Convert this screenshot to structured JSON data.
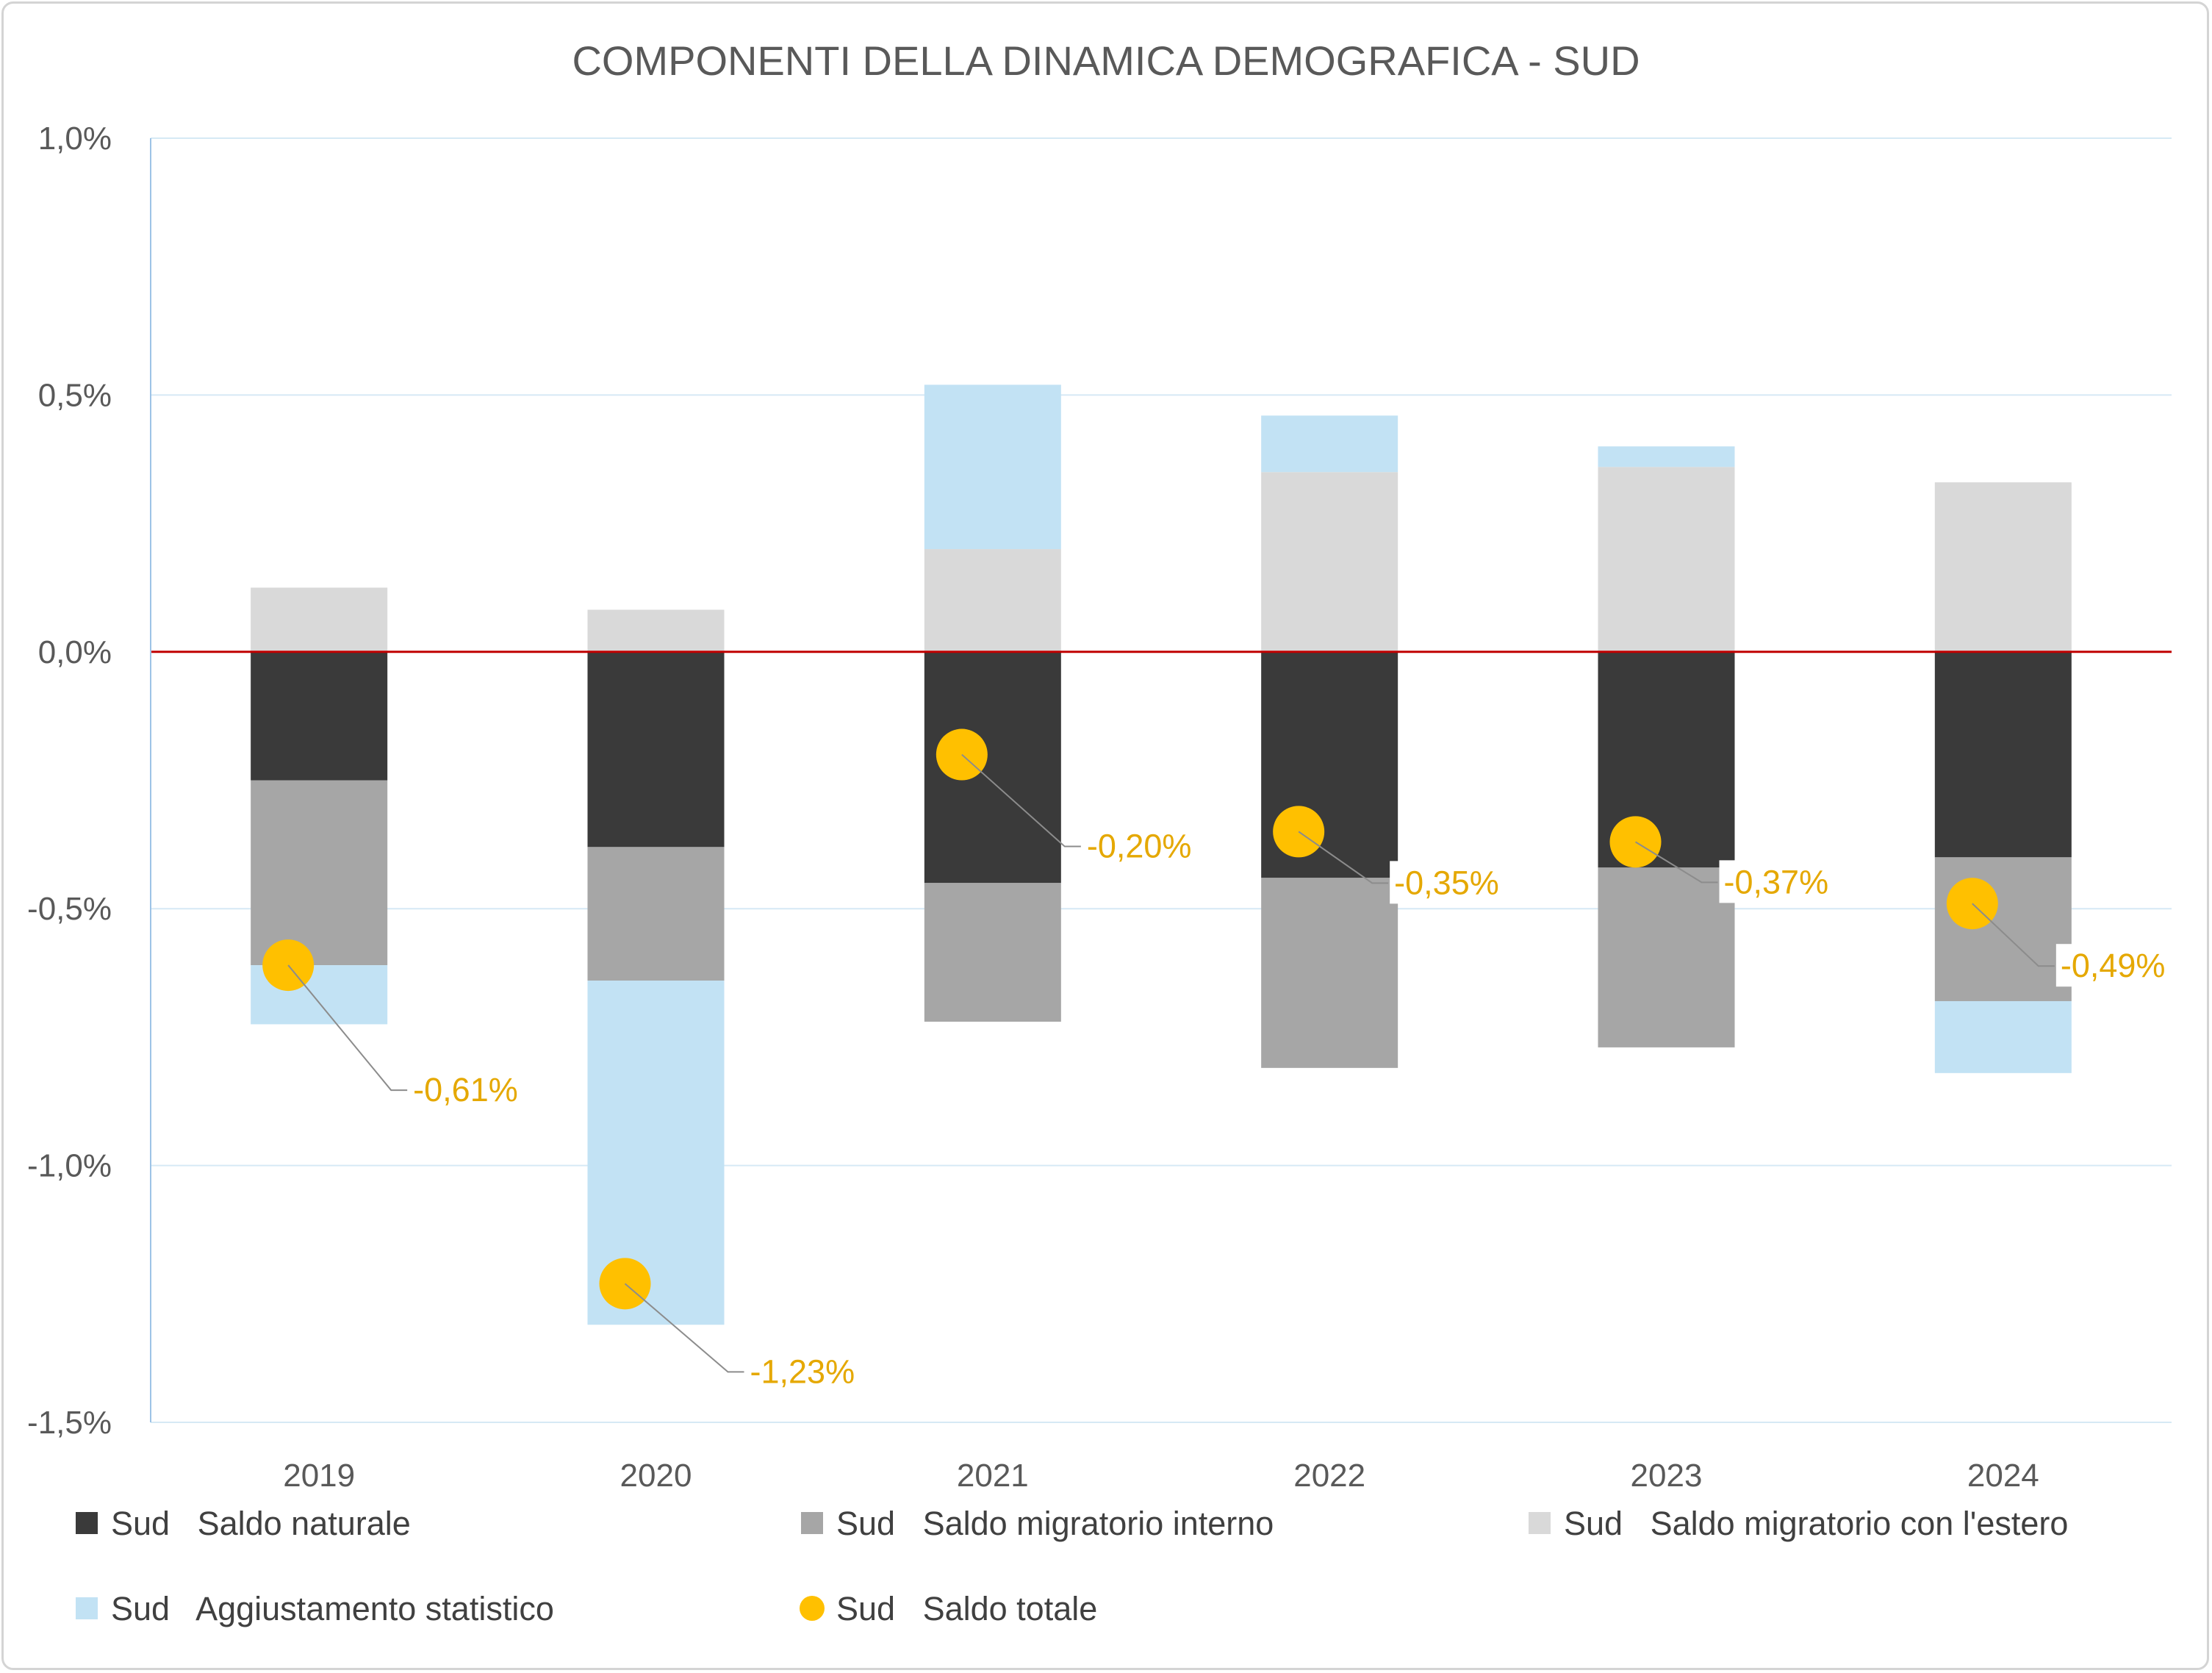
{
  "colors": {
    "saldo_naturale": "#3a3a3a",
    "saldo_migratorio_interno": "#a6a6a6",
    "saldo_migratorio_estero": "#d9d9d9",
    "aggiustamento_statistico": "#c2e2f4",
    "saldo_totale": "#ffc000",
    "label_text": "#e5a800",
    "zero_line": "#c00000",
    "grid": "#d6e9f5",
    "axis": "#9dc3e6"
  },
  "chart_data": {
    "type": "bar",
    "stacked": true,
    "title": "COMPONENTI DELLA DINAMICA DEMOGRAFICA - SUD",
    "xlabel": "",
    "ylabel": "",
    "ylim": [
      -1.5,
      1.0
    ],
    "y_ticks": [
      1.0,
      0.5,
      0.0,
      -0.5,
      -1.0,
      -1.5
    ],
    "y_tick_labels": [
      "1,0%",
      "0,5%",
      "0,0%",
      "-0,5%",
      "-1,0%",
      "-1,5%"
    ],
    "categories": [
      "2019",
      "2020",
      "2021",
      "2022",
      "2023",
      "2024"
    ],
    "series": [
      {
        "name": "Sud   Saldo naturale",
        "type": "bar",
        "color_key": "saldo_naturale",
        "values": [
          -0.25,
          -0.38,
          -0.45,
          -0.44,
          -0.42,
          -0.4
        ]
      },
      {
        "name": "Sud   Saldo migratorio interno",
        "type": "bar",
        "color_key": "saldo_migratorio_interno",
        "values": [
          -0.36,
          -0.26,
          -0.27,
          -0.37,
          -0.35,
          -0.28
        ]
      },
      {
        "name": "Sud   Saldo migratorio con l'estero",
        "type": "bar",
        "color_key": "saldo_migratorio_estero",
        "values": [
          0.125,
          0.082,
          0.2,
          0.35,
          0.36,
          0.33
        ]
      },
      {
        "name": "Sud   Aggiustamento statistico",
        "type": "bar",
        "color_key": "aggiustamento_statistico",
        "values": [
          -0.115,
          -0.67,
          0.32,
          0.11,
          0.04,
          -0.14
        ]
      },
      {
        "name": "Sud   Saldo totale",
        "type": "point",
        "color_key": "saldo_totale",
        "values": [
          -0.61,
          -1.23,
          -0.2,
          -0.35,
          -0.37,
          -0.49
        ],
        "labels": [
          "-0,61%",
          "-1,23%",
          "-0,20%",
          "-0,35%",
          "-0,37%",
          "-0,49%"
        ]
      }
    ],
    "grid": true,
    "zero_line": true,
    "legend_position": "bottom"
  }
}
